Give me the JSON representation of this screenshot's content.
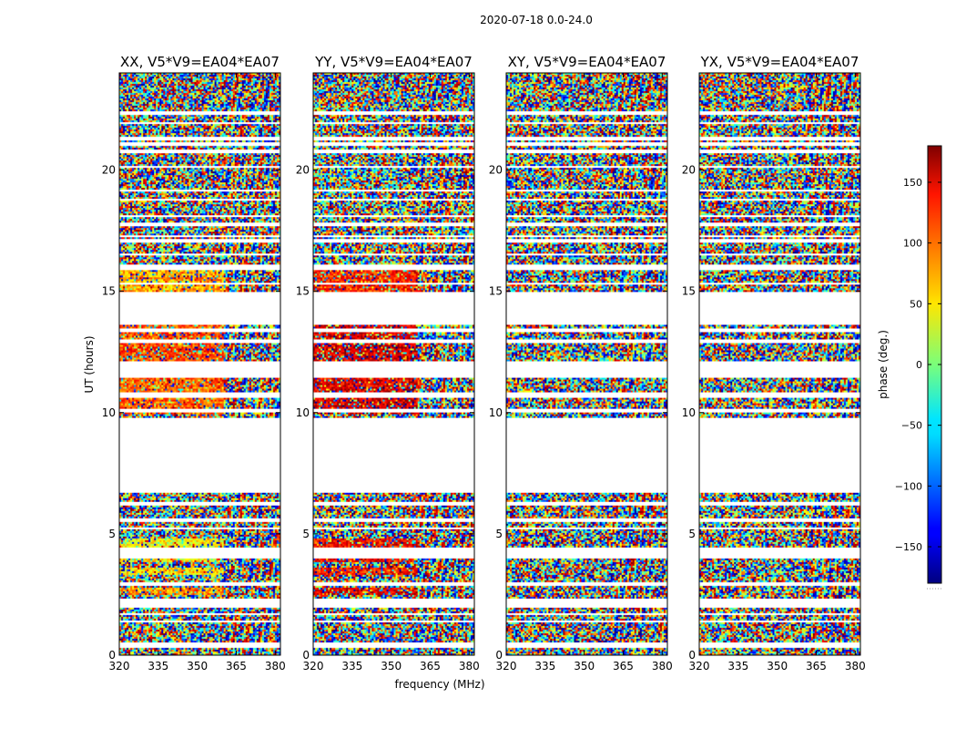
{
  "chart_data": {
    "type": "heatmap",
    "suptitle": "2020-07-18 0.0-24.0",
    "xlabel": "frequency (MHz)",
    "ylabel": "UT (hours)",
    "xlim": [
      320,
      382
    ],
    "ylim": [
      0,
      24
    ],
    "xticks": [
      320,
      335,
      350,
      365,
      380
    ],
    "yticks": [
      0,
      5,
      10,
      15,
      20
    ],
    "panels": [
      {
        "title": "XX, V5*V9=EA04*EA07",
        "product": "XX"
      },
      {
        "title": "YY, V5*V9=EA04*EA07",
        "product": "YY"
      },
      {
        "title": "XY, V5*V9=EA04*EA07",
        "product": "XY"
      },
      {
        "title": "YX, V5*V9=EA04*EA07",
        "product": "YX"
      }
    ],
    "data_gaps_hours": [
      [
        6.7,
        9.8
      ],
      [
        11.5,
        12.0
      ],
      [
        13.6,
        14.9
      ]
    ],
    "rfi_boundary_mhz": 360,
    "coherent_phase_deg": {
      "XX": {
        "1_7": 110,
        "2_7": 80,
        "3_5": 55,
        "4_5": 40,
        "10_11.5": 100,
        "12_13.6": 110,
        "15_16": 75
      },
      "YY": {
        "1_7": 150,
        "2_7": 150,
        "3_5": 130,
        "4_5": 135,
        "10_11.5": 145,
        "12_13.6": 150,
        "15_16": 120
      }
    },
    "colorbar": {
      "label": "phase (deg.)",
      "range": [
        -180,
        180
      ],
      "ticks": [
        150,
        100,
        50,
        0,
        -50,
        -100,
        -150
      ],
      "tick_labels": [
        "150",
        "100",
        "50",
        "0",
        "−50",
        "−100",
        "−150"
      ]
    }
  }
}
